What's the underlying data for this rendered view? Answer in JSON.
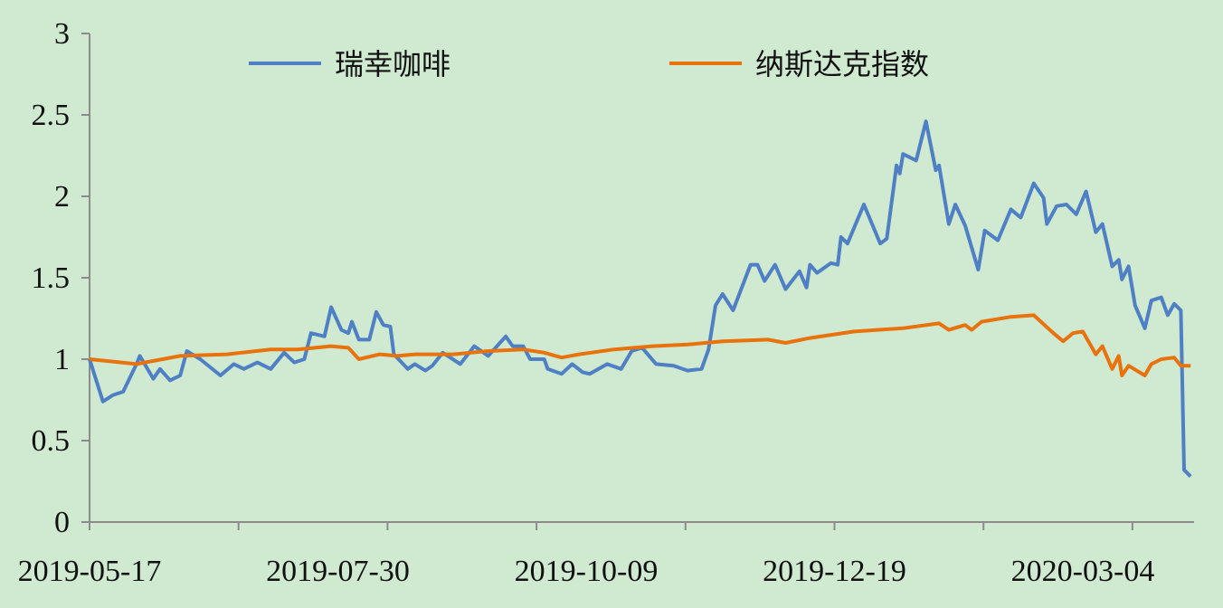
{
  "chart_data": {
    "type": "line",
    "title": "",
    "xlabel": "",
    "ylabel": "",
    "ylim": [
      0,
      3
    ],
    "y_ticks": [
      "0",
      "0.5",
      "1",
      "1.5",
      "2",
      "2.5",
      "3"
    ],
    "x_tick_labels": [
      "2019-05-17",
      "2019-07-30",
      "2019-10-09",
      "2019-12-19",
      "2020-03-04"
    ],
    "grid": false,
    "legend_position": "top",
    "series": [
      {
        "name": "瑞幸咖啡",
        "color": "#4f7fc4",
        "points": [
          [
            "2019-05-17",
            1.0
          ],
          [
            "2019-05-21",
            0.74
          ],
          [
            "2019-05-24",
            0.78
          ],
          [
            "2019-05-27",
            0.8
          ],
          [
            "2019-05-31",
            0.97
          ],
          [
            "2019-06-01",
            1.02
          ],
          [
            "2019-06-05",
            0.88
          ],
          [
            "2019-06-07",
            0.94
          ],
          [
            "2019-06-10",
            0.87
          ],
          [
            "2019-06-13",
            0.9
          ],
          [
            "2019-06-15",
            1.05
          ],
          [
            "2019-06-19",
            1.0
          ],
          [
            "2019-06-25",
            0.9
          ],
          [
            "2019-06-29",
            0.97
          ],
          [
            "2019-07-02",
            0.94
          ],
          [
            "2019-07-06",
            0.98
          ],
          [
            "2019-07-10",
            0.94
          ],
          [
            "2019-07-14",
            1.04
          ],
          [
            "2019-07-17",
            0.98
          ],
          [
            "2019-07-20",
            1.0
          ],
          [
            "2019-07-22",
            1.16
          ],
          [
            "2019-07-26",
            1.14
          ],
          [
            "2019-07-28",
            1.32
          ],
          [
            "2019-07-31",
            1.18
          ],
          [
            "2019-08-02",
            1.16
          ],
          [
            "2019-08-03",
            1.23
          ],
          [
            "2019-08-05",
            1.12
          ],
          [
            "2019-08-08",
            1.12
          ],
          [
            "2019-08-10",
            1.29
          ],
          [
            "2019-08-12",
            1.21
          ],
          [
            "2019-08-14",
            1.2
          ],
          [
            "2019-08-15",
            1.03
          ],
          [
            "2019-08-19",
            0.94
          ],
          [
            "2019-08-21",
            0.97
          ],
          [
            "2019-08-24",
            0.93
          ],
          [
            "2019-08-26",
            0.96
          ],
          [
            "2019-08-29",
            1.04
          ],
          [
            "2019-09-03",
            0.97
          ],
          [
            "2019-09-07",
            1.08
          ],
          [
            "2019-09-11",
            1.02
          ],
          [
            "2019-09-16",
            1.14
          ],
          [
            "2019-09-18",
            1.08
          ],
          [
            "2019-09-21",
            1.08
          ],
          [
            "2019-09-23",
            1.0
          ],
          [
            "2019-09-27",
            1.0
          ],
          [
            "2019-09-28",
            0.94
          ],
          [
            "2019-10-02",
            0.91
          ],
          [
            "2019-10-05",
            0.97
          ],
          [
            "2019-10-08",
            0.92
          ],
          [
            "2019-10-10",
            0.91
          ],
          [
            "2019-10-15",
            0.97
          ],
          [
            "2019-10-19",
            0.94
          ],
          [
            "2019-10-22",
            1.05
          ],
          [
            "2019-10-25",
            1.07
          ],
          [
            "2019-10-29",
            0.97
          ],
          [
            "2019-11-03",
            0.96
          ],
          [
            "2019-11-07",
            0.93
          ],
          [
            "2019-11-11",
            0.94
          ],
          [
            "2019-11-13",
            1.06
          ],
          [
            "2019-11-15",
            1.33
          ],
          [
            "2019-11-17",
            1.4
          ],
          [
            "2019-11-20",
            1.3
          ],
          [
            "2019-11-25",
            1.58
          ],
          [
            "2019-11-27",
            1.58
          ],
          [
            "2019-11-29",
            1.48
          ],
          [
            "2019-12-02",
            1.58
          ],
          [
            "2019-12-05",
            1.43
          ],
          [
            "2019-12-09",
            1.54
          ],
          [
            "2019-12-11",
            1.44
          ],
          [
            "2019-12-12",
            1.58
          ],
          [
            "2019-12-14",
            1.53
          ],
          [
            "2019-12-18",
            1.59
          ],
          [
            "2019-12-20",
            1.58
          ],
          [
            "2019-12-21",
            1.75
          ],
          [
            "2019-12-23",
            1.71
          ],
          [
            "2019-12-28",
            1.95
          ],
          [
            "2020-01-02",
            1.71
          ],
          [
            "2020-01-04",
            1.74
          ],
          [
            "2020-01-07",
            2.19
          ],
          [
            "2020-01-08",
            2.14
          ],
          [
            "2020-01-09",
            2.26
          ],
          [
            "2020-01-13",
            2.22
          ],
          [
            "2020-01-16",
            2.46
          ],
          [
            "2020-01-19",
            2.16
          ],
          [
            "2020-01-20",
            2.19
          ],
          [
            "2020-01-23",
            1.83
          ],
          [
            "2020-01-25",
            1.95
          ],
          [
            "2020-01-28",
            1.82
          ],
          [
            "2020-02-01",
            1.55
          ],
          [
            "2020-02-03",
            1.79
          ],
          [
            "2020-02-07",
            1.73
          ],
          [
            "2020-02-11",
            1.92
          ],
          [
            "2020-02-14",
            1.87
          ],
          [
            "2020-02-18",
            2.08
          ],
          [
            "2020-02-21",
            1.99
          ],
          [
            "2020-02-22",
            1.83
          ],
          [
            "2020-02-25",
            1.94
          ],
          [
            "2020-02-28",
            1.95
          ],
          [
            "2020-03-02",
            1.89
          ],
          [
            "2020-03-05",
            2.03
          ],
          [
            "2020-03-08",
            1.78
          ],
          [
            "2020-03-10",
            1.83
          ],
          [
            "2020-03-13",
            1.57
          ],
          [
            "2020-03-15",
            1.61
          ],
          [
            "2020-03-16",
            1.49
          ],
          [
            "2020-03-18",
            1.57
          ],
          [
            "2020-03-20",
            1.33
          ],
          [
            "2020-03-23",
            1.19
          ],
          [
            "2020-03-25",
            1.36
          ],
          [
            "2020-03-28",
            1.38
          ],
          [
            "2020-03-30",
            1.27
          ],
          [
            "2020-04-01",
            1.34
          ],
          [
            "2020-04-03",
            1.3
          ],
          [
            "2020-04-04",
            0.32
          ],
          [
            "2020-04-06",
            0.28
          ]
        ]
      },
      {
        "name": "纳斯达克指数",
        "color": "#e8720c",
        "points": [
          [
            "2019-05-17",
            1.0
          ],
          [
            "2019-05-31",
            0.97
          ],
          [
            "2019-06-13",
            1.02
          ],
          [
            "2019-06-27",
            1.03
          ],
          [
            "2019-07-10",
            1.06
          ],
          [
            "2019-07-18",
            1.06
          ],
          [
            "2019-07-28",
            1.08
          ],
          [
            "2019-08-02",
            1.07
          ],
          [
            "2019-08-05",
            1.0
          ],
          [
            "2019-08-11",
            1.03
          ],
          [
            "2019-08-16",
            1.02
          ],
          [
            "2019-08-21",
            1.03
          ],
          [
            "2019-08-26",
            1.03
          ],
          [
            "2019-09-01",
            1.03
          ],
          [
            "2019-09-11",
            1.05
          ],
          [
            "2019-09-21",
            1.06
          ],
          [
            "2019-09-27",
            1.04
          ],
          [
            "2019-10-02",
            1.01
          ],
          [
            "2019-10-07",
            1.03
          ],
          [
            "2019-10-17",
            1.06
          ],
          [
            "2019-10-28",
            1.08
          ],
          [
            "2019-11-07",
            1.09
          ],
          [
            "2019-11-17",
            1.11
          ],
          [
            "2019-11-30",
            1.12
          ],
          [
            "2019-12-05",
            1.1
          ],
          [
            "2019-12-12",
            1.13
          ],
          [
            "2019-12-25",
            1.17
          ],
          [
            "2020-01-09",
            1.19
          ],
          [
            "2020-01-20",
            1.22
          ],
          [
            "2020-01-23",
            1.18
          ],
          [
            "2020-01-28",
            1.21
          ],
          [
            "2020-01-30",
            1.18
          ],
          [
            "2020-02-02",
            1.23
          ],
          [
            "2020-02-11",
            1.26
          ],
          [
            "2020-02-18",
            1.27
          ],
          [
            "2020-02-24",
            1.16
          ],
          [
            "2020-02-27",
            1.11
          ],
          [
            "2020-03-01",
            1.16
          ],
          [
            "2020-03-04",
            1.17
          ],
          [
            "2020-03-08",
            1.03
          ],
          [
            "2020-03-10",
            1.08
          ],
          [
            "2020-03-13",
            0.94
          ],
          [
            "2020-03-15",
            1.02
          ],
          [
            "2020-03-16",
            0.9
          ],
          [
            "2020-03-18",
            0.96
          ],
          [
            "2020-03-23",
            0.9
          ],
          [
            "2020-03-25",
            0.97
          ],
          [
            "2020-03-28",
            1.0
          ],
          [
            "2020-04-01",
            1.01
          ],
          [
            "2020-04-03",
            0.96
          ],
          [
            "2020-04-06",
            0.96
          ]
        ]
      }
    ]
  }
}
